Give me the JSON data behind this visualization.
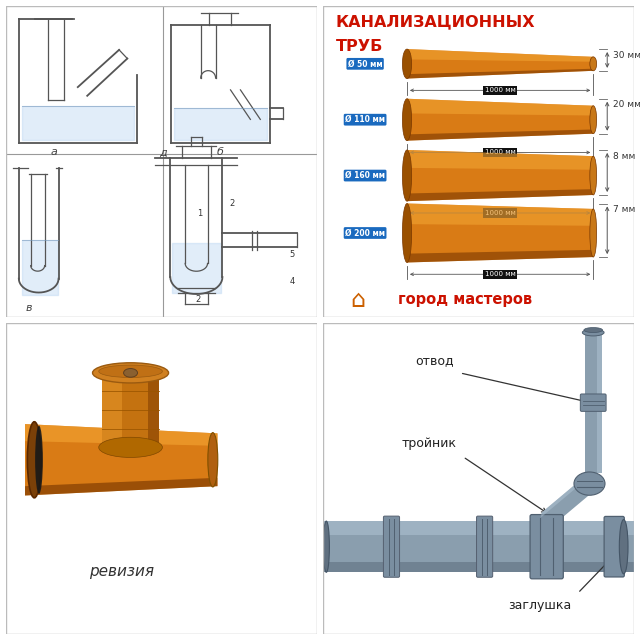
{
  "title_line1": "КАНАЛИЗАЦИОННЫХ",
  "title_line2": "ТРУБ",
  "pipe_diameters": [
    "Ø 50 мм",
    "Ø 110 мм",
    "Ø 160 мм",
    "Ø 200 мм"
  ],
  "pipe_lengths": [
    "1000 мм",
    "1000 мм",
    "1000 мм",
    "1000 мм"
  ],
  "pipe_walls": [
    "30 мм",
    "20 мм",
    "8 мм",
    "7 мм"
  ],
  "brand_text": "город мастеров",
  "label_revision": "ревизия",
  "label_otv": "отвод",
  "label_troyn": "тройник",
  "label_zaglush": "заглушка",
  "red": "#cc1100",
  "orange_main": "#d97b15",
  "orange_light": "#f0a030",
  "orange_dark": "#9a5000",
  "orange_shadow": "#7a3800",
  "blue_label": "#1a6abf",
  "gray_pipe": "#8a9eae",
  "gray_light": "#b0c4d4",
  "gray_dark": "#607080",
  "bg_white": "#ffffff",
  "bg_sketch": "#eeeceb",
  "sketch_line": "#555555"
}
